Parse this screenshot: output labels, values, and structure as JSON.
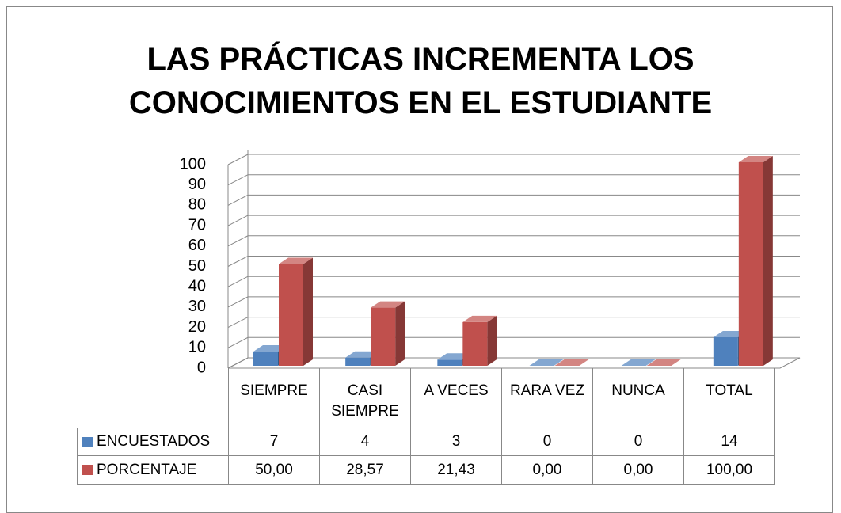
{
  "chart_data": {
    "type": "bar3d",
    "title": "LAS PRÁCTICAS INCREMENTA LOS CONOCIMIENTOS EN EL ESTUDIANTE",
    "categories": [
      "SIEMPRE",
      "CASI SIEMPRE",
      "A VECES",
      "RARA VEZ",
      "NUNCA",
      "TOTAL"
    ],
    "series": [
      {
        "name": "ENCUESTADOS",
        "color": "#4f81bd",
        "values": [
          7,
          4,
          3,
          0,
          0,
          14
        ]
      },
      {
        "name": "PORCENTAJE",
        "color": "#c0504d",
        "values": [
          50,
          28.57,
          21.43,
          0,
          0,
          100
        ],
        "value_labels": [
          "50,00",
          "28,57",
          "21,43",
          "0,00",
          "0,00",
          "100,00"
        ]
      }
    ],
    "ylim": [
      0,
      100
    ],
    "yticks": [
      0,
      10,
      20,
      30,
      40,
      50,
      60,
      70,
      80,
      90,
      100
    ],
    "grid": true
  }
}
